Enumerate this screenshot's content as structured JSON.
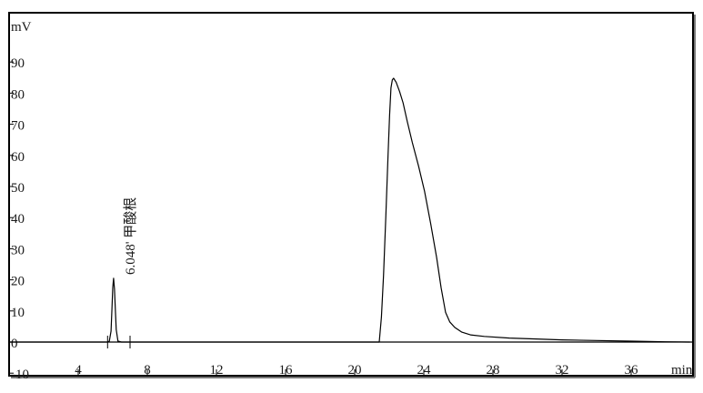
{
  "chart_data": {
    "type": "line",
    "title": "",
    "xlabel": "min",
    "ylabel": "mV",
    "xlim": [
      0,
      39.4
    ],
    "ylim": [
      -10,
      104.7
    ],
    "x_ticks": [
      4,
      8,
      12,
      16,
      20,
      24,
      28,
      32,
      36
    ],
    "y_ticks": [
      -10,
      0,
      10,
      20,
      30,
      40,
      50,
      60,
      70,
      80,
      90
    ],
    "grid": false,
    "legend": "none",
    "line_color": "#000000",
    "series": [
      {
        "x": [
          0,
          5.7,
          5.8,
          5.9,
          5.95,
          6.0,
          6.048,
          6.1,
          6.15,
          6.2,
          6.3,
          6.5,
          21.42,
          21.55,
          21.67,
          21.8,
          21.93,
          22.02,
          22.1,
          22.18,
          22.25,
          22.4,
          22.6,
          22.8,
          23.05,
          23.33,
          23.7,
          24.04,
          24.4,
          24.74,
          25.0,
          25.26,
          25.5,
          25.79,
          26.2,
          26.7,
          27.5,
          28.95,
          30.5,
          32,
          34,
          36,
          38,
          39.4
        ],
        "y": [
          0,
          0,
          0.3,
          3.5,
          10,
          17.5,
          20.5,
          17,
          10,
          4,
          0.3,
          0,
          0,
          8,
          21.3,
          40,
          60.2,
          73,
          81.7,
          84.3,
          84.8,
          83.5,
          80.5,
          76.9,
          70.8,
          64.2,
          56.5,
          48.5,
          38,
          27.2,
          17.5,
          9.6,
          6.5,
          4.7,
          3.2,
          2.3,
          1.8,
          1.3,
          1.0,
          0.7,
          0.5,
          0.3,
          0.1,
          0
        ]
      }
    ],
    "baseline_markers": [
      5.7,
      7.0
    ],
    "annotations": [
      {
        "x": 6.048,
        "text": "6.048'  甲酸根"
      }
    ]
  }
}
